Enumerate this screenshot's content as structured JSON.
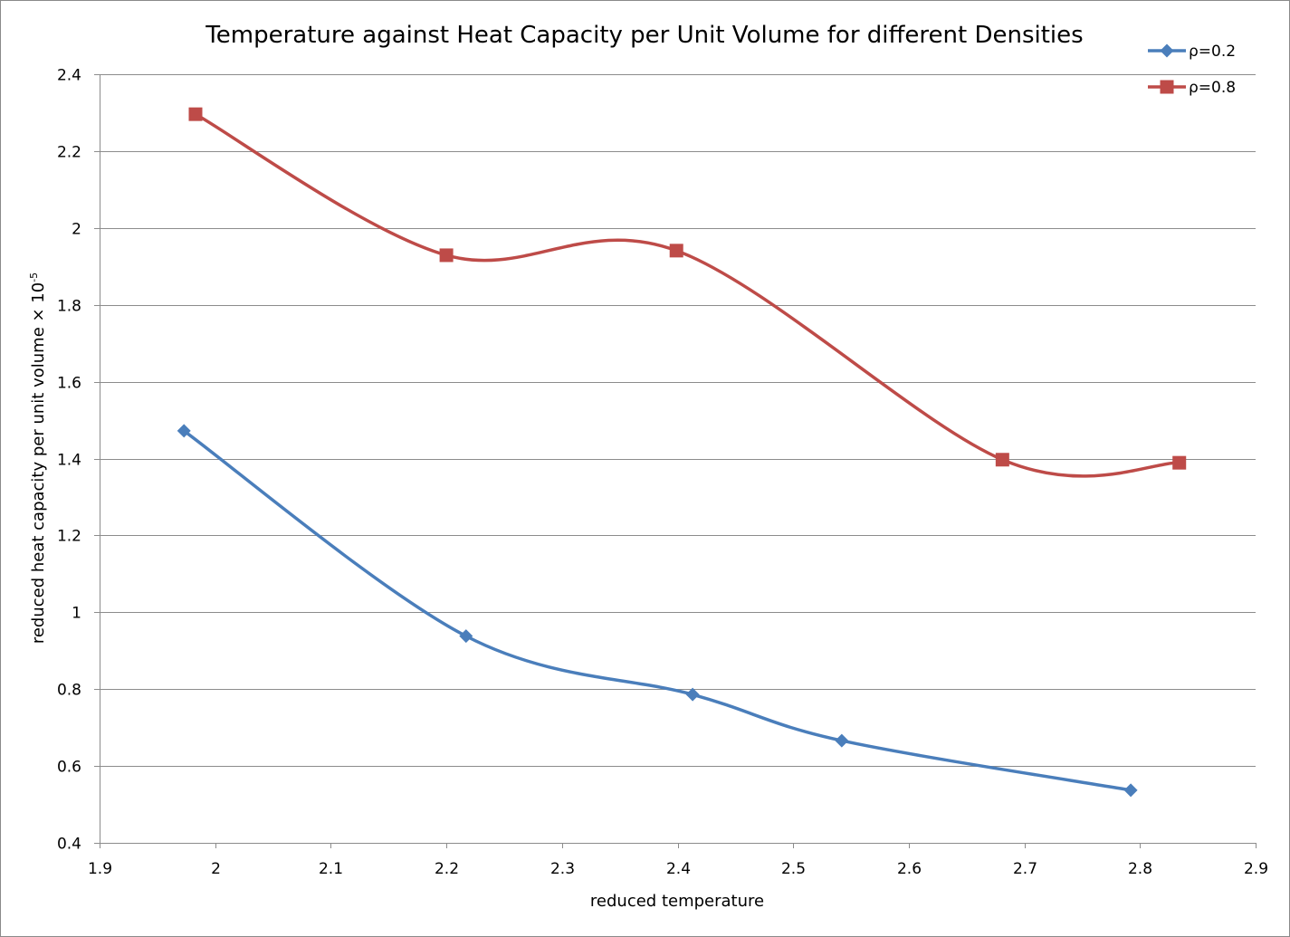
{
  "chart_data": {
    "type": "line",
    "title": "Temperature against Heat Capacity per Unit Volume for different Densities",
    "xlabel": "reduced temperature",
    "ylabel": "reduced heat capacity per unit volume × 10",
    "ylabel_exponent": "-5",
    "xlim": [
      1.9,
      2.9
    ],
    "ylim": [
      0.4,
      2.4
    ],
    "x_ticks": [
      1.9,
      2.0,
      2.1,
      2.2,
      2.3,
      2.4,
      2.5,
      2.6,
      2.7,
      2.8,
      2.9
    ],
    "x_tick_labels": [
      "1.9",
      "2",
      "2.1",
      "2.2",
      "2.3",
      "2.4",
      "2.5",
      "2.6",
      "2.7",
      "2.8",
      "2.9"
    ],
    "y_ticks": [
      0.4,
      0.6,
      0.8,
      1.0,
      1.2,
      1.4,
      1.6,
      1.8,
      2.0,
      2.2,
      2.4
    ],
    "y_tick_labels": [
      "0.4",
      "0.6",
      "0.8",
      "1",
      "1.2",
      "1.4",
      "1.6",
      "1.8",
      "2",
      "2.2",
      "2.4"
    ],
    "grid": true,
    "legend_position": "top-right",
    "smooth": true,
    "series": [
      {
        "name": "ρ=0.2",
        "color": "#4a7ebb",
        "marker": "diamond",
        "x": [
          1.973,
          2.217,
          2.413,
          2.542,
          2.792
        ],
        "y": [
          1.472,
          0.938,
          0.786,
          0.666,
          0.537
        ]
      },
      {
        "name": "ρ=0.8",
        "color": "#be4b48",
        "marker": "square",
        "x": [
          1.983,
          2.2,
          2.399,
          2.681,
          2.834
        ],
        "y": [
          2.296,
          1.929,
          1.941,
          1.397,
          1.389
        ]
      }
    ]
  }
}
